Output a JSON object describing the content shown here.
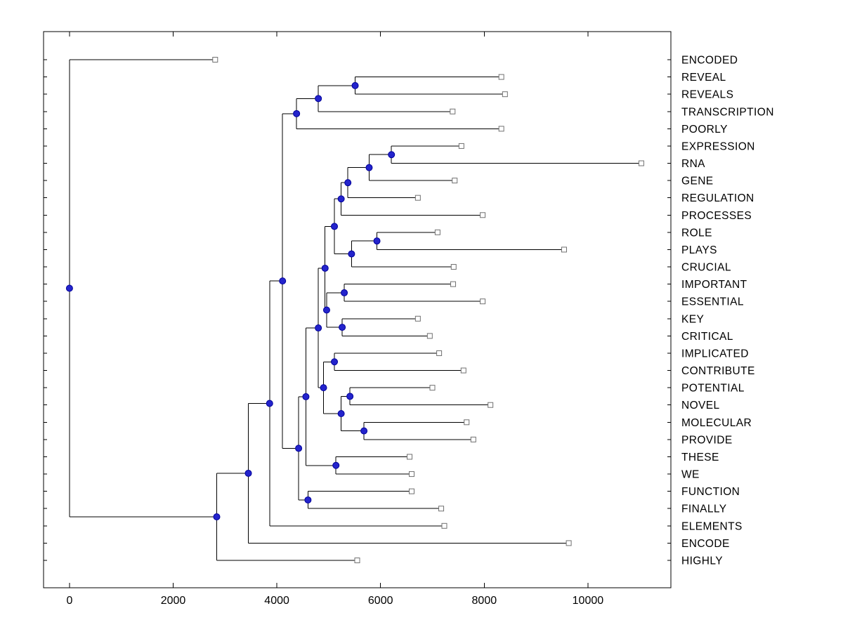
{
  "chart_data": {
    "type": "dendrogram",
    "orientation": "left-to-right",
    "title": "",
    "xlabel": "",
    "ylabel": "",
    "xlim": [
      -500,
      11600
    ],
    "x_ticks": [
      0,
      2000,
      4000,
      6000,
      8000,
      10000
    ],
    "grid": false,
    "legend": "none",
    "background": "#FFFFFF",
    "line_color": "#000000",
    "axis_color": "#000000",
    "markers": {
      "internal": {
        "shape": "circle",
        "fill": "#2424CC",
        "stroke": "#000099"
      },
      "leaf": {
        "shape": "square",
        "fill": "#FFFFFF",
        "stroke": "#707070"
      }
    },
    "leaf_labels": [
      "ENCODED",
      "REVEAL",
      "REVEALS",
      "TRANSCRIPTION",
      "POORLY",
      "EXPRESSION",
      "RNA",
      "GENE",
      "REGULATION",
      "PROCESSES",
      "ROLE",
      "PLAYS",
      "CRUCIAL",
      "IMPORTANT",
      "ESSENTIAL",
      "KEY",
      "CRITICAL",
      "IMPLICATED",
      "CONTRIBUTE",
      "POTENTIAL",
      "NOVEL",
      "MOLECULAR",
      "PROVIDE",
      "THESE",
      "WE",
      "FUNCTION",
      "FINALLY",
      "ELEMENTS",
      "ENCODE",
      "HIGHLY"
    ],
    "tree": {
      "dist": 0,
      "children": [
        {
          "name": "ENCODED",
          "dist": 2810
        },
        {
          "dist": 2840,
          "children": [
            {
              "dist": 3450,
              "children": [
                {
                  "dist": 3860,
                  "children": [
                    {
                      "dist": 4110,
                      "children": [
                        {
                          "dist": 4380,
                          "children": [
                            {
                              "dist": 4800,
                              "children": [
                                {
                                  "dist": 5510,
                                  "children": [
                                    {
                                      "name": "REVEAL",
                                      "dist": 8330
                                    },
                                    {
                                      "name": "REVEALS",
                                      "dist": 8400
                                    }
                                  ]
                                },
                                {
                                  "name": "TRANSCRIPTION",
                                  "dist": 7390
                                }
                              ]
                            },
                            {
                              "name": "POORLY",
                              "dist": 8330
                            }
                          ]
                        },
                        {
                          "dist": 4420,
                          "children": [
                            {
                              "dist": 4560,
                              "children": [
                                {
                                  "dist": 4800,
                                  "children": [
                                    {
                                      "dist": 4930,
                                      "children": [
                                        {
                                          "dist": 5110,
                                          "children": [
                                            {
                                              "dist": 5240,
                                              "children": [
                                                {
                                                  "dist": 5370,
                                                  "children": [
                                                    {
                                                      "dist": 5780,
                                                      "children": [
                                                        {
                                                          "dist": 6210,
                                                          "children": [
                                                            {
                                                              "name": "EXPRESSION",
                                                              "dist": 7560
                                                            },
                                                            {
                                                              "name": "RNA",
                                                              "dist": 11030
                                                            }
                                                          ]
                                                        },
                                                        {
                                                          "name": "GENE",
                                                          "dist": 7430
                                                        }
                                                      ]
                                                    },
                                                    {
                                                      "name": "REGULATION",
                                                      "dist": 6720
                                                    }
                                                  ]
                                                },
                                                {
                                                  "name": "PROCESSES",
                                                  "dist": 7970
                                                }
                                              ]
                                            },
                                            {
                                              "dist": 5440,
                                              "children": [
                                                {
                                                  "dist": 5930,
                                                  "children": [
                                                    {
                                                      "name": "ROLE",
                                                      "dist": 7100
                                                    },
                                                    {
                                                      "name": "PLAYS",
                                                      "dist": 9540
                                                    }
                                                  ]
                                                },
                                                {
                                                  "name": "CRUCIAL",
                                                  "dist": 7410
                                                }
                                              ]
                                            }
                                          ]
                                        },
                                        {
                                          "dist": 4960,
                                          "children": [
                                            {
                                              "dist": 5300,
                                              "children": [
                                                {
                                                  "name": "IMPORTANT",
                                                  "dist": 7400
                                                },
                                                {
                                                  "name": "ESSENTIAL",
                                                  "dist": 7970
                                                }
                                              ]
                                            },
                                            {
                                              "dist": 5260,
                                              "children": [
                                                {
                                                  "name": "KEY",
                                                  "dist": 6720
                                                },
                                                {
                                                  "name": "CRITICAL",
                                                  "dist": 6950
                                                }
                                              ]
                                            }
                                          ]
                                        }
                                      ]
                                    },
                                    {
                                      "dist": 4900,
                                      "children": [
                                        {
                                          "dist": 5110,
                                          "children": [
                                            {
                                              "name": "IMPLICATED",
                                              "dist": 7130
                                            },
                                            {
                                              "name": "CONTRIBUTE",
                                              "dist": 7600
                                            }
                                          ]
                                        },
                                        {
                                          "dist": 5240,
                                          "children": [
                                            {
                                              "dist": 5410,
                                              "children": [
                                                {
                                                  "name": "POTENTIAL",
                                                  "dist": 7000
                                                },
                                                {
                                                  "name": "NOVEL",
                                                  "dist": 8120
                                                }
                                              ]
                                            },
                                            {
                                              "dist": 5680,
                                              "children": [
                                                {
                                                  "name": "MOLECULAR",
                                                  "dist": 7660
                                                },
                                                {
                                                  "name": "PROVIDE",
                                                  "dist": 7790
                                                }
                                              ]
                                            }
                                          ]
                                        }
                                      ]
                                    }
                                  ]
                                },
                                {
                                  "dist": 5140,
                                  "children": [
                                    {
                                      "name": "THESE",
                                      "dist": 6560
                                    },
                                    {
                                      "name": "WE",
                                      "dist": 6600
                                    }
                                  ]
                                }
                              ]
                            },
                            {
                              "dist": 4600,
                              "children": [
                                {
                                  "name": "FUNCTION",
                                  "dist": 6600
                                },
                                {
                                  "name": "FINALLY",
                                  "dist": 7170
                                }
                              ]
                            }
                          ]
                        }
                      ]
                    },
                    {
                      "name": "ELEMENTS",
                      "dist": 7230
                    }
                  ]
                },
                {
                  "name": "ENCODE",
                  "dist": 9630
                }
              ]
            },
            {
              "name": "HIGHLY",
              "dist": 5550
            }
          ]
        }
      ]
    }
  }
}
